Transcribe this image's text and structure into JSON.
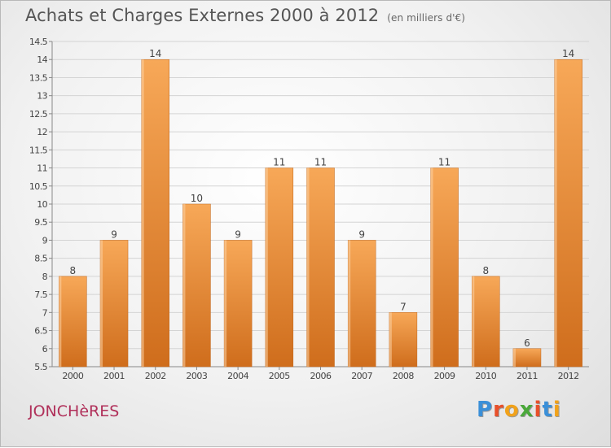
{
  "header": {
    "title": "Achats et Charges Externes 2000 à 2012",
    "unit": "(en milliers d'€)"
  },
  "commune": "JONCHèRES",
  "logo": {
    "text": "Proxiti",
    "colors": [
      "#3a8fd8",
      "#e8502a",
      "#f1a21b",
      "#4aa83a",
      "#e8502a",
      "#3a8fd8",
      "#f1a21b"
    ]
  },
  "chart_data": {
    "type": "bar",
    "title": "Achats et Charges Externes 2000 à 2012",
    "subtitle": "(en milliers d'€)",
    "categories": [
      "2000",
      "2001",
      "2002",
      "2003",
      "2004",
      "2005",
      "2006",
      "2007",
      "2008",
      "2009",
      "2010",
      "2011",
      "2012"
    ],
    "values": [
      8,
      9,
      14,
      10,
      9,
      11,
      11,
      9,
      7,
      11,
      8,
      6,
      14
    ],
    "ylim": [
      5.5,
      14.5
    ],
    "yticks": [
      5.5,
      6,
      6.5,
      7,
      7.5,
      8,
      8.5,
      9,
      9.5,
      10,
      10.5,
      11,
      11.5,
      12,
      12.5,
      13,
      13.5,
      14,
      14.5
    ],
    "grid": true,
    "bar_color_top": "#f7a858",
    "bar_color_bottom": "#cf6d1c"
  }
}
